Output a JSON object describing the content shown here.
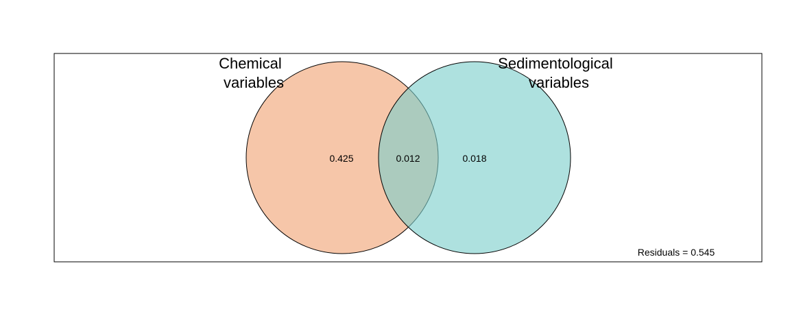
{
  "diagram": {
    "type": "venn",
    "sets": [
      {
        "label_lines": [
          "Chemical",
          "variables"
        ],
        "color": "#f0a070",
        "opacity": 0.6
      },
      {
        "label_lines": [
          "Sedimentological",
          "variables"
        ],
        "color": "#7ccfcc",
        "opacity": 0.62
      }
    ],
    "regions": {
      "chemical_only": "0.425",
      "intersection": "0.012",
      "sedimentological_only": "0.018"
    },
    "residuals_text": "Residuals = 0.545",
    "frame_color": "#000000"
  }
}
